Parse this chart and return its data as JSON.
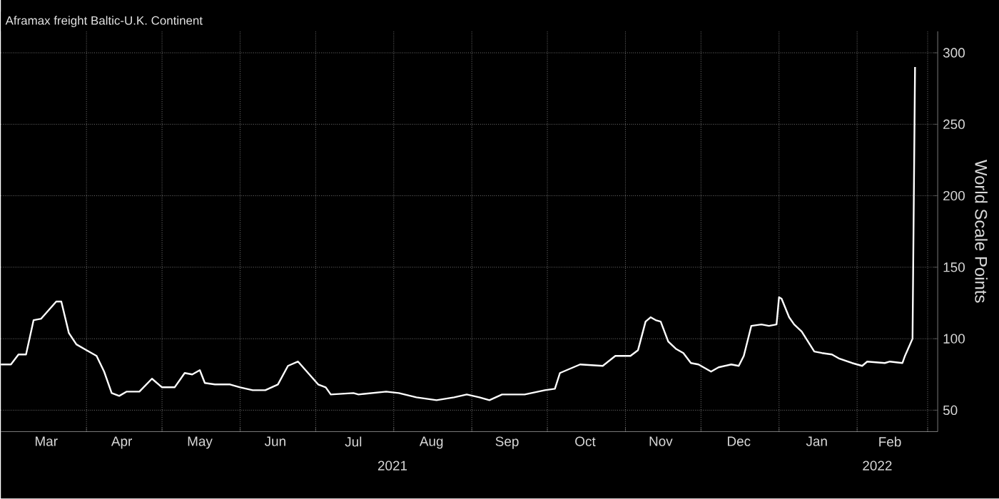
{
  "chart_data": {
    "type": "line",
    "ylabel": "World Scale Points",
    "legend": "top left",
    "grid": true,
    "line_style": "solid",
    "marker": "none",
    "xlim": [
      "2021-02-26",
      "2022-03-05"
    ],
    "ylim": [
      35,
      315
    ],
    "yticks": [
      50,
      100,
      150,
      200,
      250,
      300
    ],
    "xticks": [
      {
        "value": "2021-04-01",
        "label": null
      },
      {
        "value": "2021-05-01",
        "label": null
      },
      {
        "value": "2021-06-01",
        "label": null
      },
      {
        "value": "2021-07-01",
        "label": null
      },
      {
        "value": "2021-08-01",
        "label": null
      },
      {
        "value": "2021-09-01",
        "label": null
      },
      {
        "value": "2021-10-01",
        "label": null
      },
      {
        "value": "2021-11-01",
        "label": null
      },
      {
        "value": "2021-12-01",
        "label": null
      },
      {
        "value": "2022-01-01",
        "label": null
      },
      {
        "value": "2022-02-01",
        "label": null
      },
      {
        "value": "2022-03-01",
        "label": null
      },
      {
        "value": "2021-03-16",
        "label": "Mar"
      },
      {
        "value": "2021-04-15",
        "label": "Apr"
      },
      {
        "value": "2021-05-16",
        "label": "May"
      },
      {
        "value": "2021-06-15",
        "label": "Jun"
      },
      {
        "value": "2021-07-16",
        "label": "Jul"
      },
      {
        "value": "2021-08-16",
        "label": "Aug"
      },
      {
        "value": "2021-09-15",
        "label": "Sep"
      },
      {
        "value": "2021-10-16",
        "label": "Oct"
      },
      {
        "value": "2021-11-15",
        "label": "Nov"
      },
      {
        "value": "2021-12-16",
        "label": "Dec"
      },
      {
        "value": "2022-01-16",
        "label": "Jan"
      },
      {
        "value": "2022-02-14",
        "label": "Feb"
      }
    ],
    "annotations": [
      "2021",
      "2022"
    ],
    "series": [
      {
        "name": "Aframax freight Baltic-U.K. Continent",
        "color": "#ffffff",
        "x": [
          "2021-02-26",
          "2021-03-02",
          "2021-03-05",
          "2021-03-08",
          "2021-03-11",
          "2021-03-14",
          "2021-03-17",
          "2021-03-20",
          "2021-03-22",
          "2021-03-25",
          "2021-03-28",
          "2021-04-01",
          "2021-04-05",
          "2021-04-08",
          "2021-04-11",
          "2021-04-14",
          "2021-04-17",
          "2021-04-22",
          "2021-04-27",
          "2021-05-01",
          "2021-05-06",
          "2021-05-10",
          "2021-05-13",
          "2021-05-16",
          "2021-05-18",
          "2021-05-22",
          "2021-05-28",
          "2021-06-01",
          "2021-06-06",
          "2021-06-11",
          "2021-06-16",
          "2021-06-20",
          "2021-06-24",
          "2021-06-26",
          "2021-07-02",
          "2021-07-05",
          "2021-07-07",
          "2021-07-16",
          "2021-07-18",
          "2021-07-29",
          "2021-08-03",
          "2021-08-10",
          "2021-08-18",
          "2021-08-25",
          "2021-08-30",
          "2021-09-04",
          "2021-09-08",
          "2021-09-13",
          "2021-09-22",
          "2021-09-30",
          "2021-10-04",
          "2021-10-06",
          "2021-10-10",
          "2021-10-14",
          "2021-10-23",
          "2021-10-28",
          "2021-11-03",
          "2021-11-06",
          "2021-11-09",
          "2021-11-11",
          "2021-11-13",
          "2021-11-15",
          "2021-11-18",
          "2021-11-21",
          "2021-11-24",
          "2021-11-27",
          "2021-11-30",
          "2021-12-05",
          "2021-12-08",
          "2021-12-13",
          "2021-12-16",
          "2021-12-18",
          "2021-12-21",
          "2021-12-25",
          "2021-12-28",
          "2021-12-31",
          "2022-01-01",
          "2022-01-02",
          "2022-01-05",
          "2022-01-07",
          "2022-01-10",
          "2022-01-15",
          "2022-01-18",
          "2022-01-22",
          "2022-01-25",
          "2022-01-30",
          "2022-02-03",
          "2022-02-05",
          "2022-02-12",
          "2022-02-14",
          "2022-02-19",
          "2022-02-20",
          "2022-02-23",
          "2022-02-24"
        ],
        "values": [
          82,
          82,
          89,
          89,
          113,
          114,
          120,
          126,
          126,
          104,
          96,
          92,
          88,
          77,
          62,
          60,
          63,
          63,
          72,
          66,
          66,
          76,
          75,
          78,
          69,
          68,
          68,
          66,
          64,
          64,
          68,
          81,
          84,
          80,
          68,
          66,
          61,
          62,
          61,
          63,
          62,
          59,
          57,
          59,
          61,
          59,
          57,
          61,
          61,
          64,
          65,
          76,
          79,
          82,
          81,
          88,
          88,
          92,
          112,
          115,
          113,
          112,
          98,
          93,
          90,
          83,
          82,
          77,
          80,
          82,
          81,
          88,
          109,
          110,
          109,
          110,
          129,
          128,
          115,
          110,
          105,
          91,
          90,
          89,
          86,
          83,
          81,
          84,
          83,
          84,
          83,
          88,
          100,
          290
        ]
      }
    ]
  }
}
